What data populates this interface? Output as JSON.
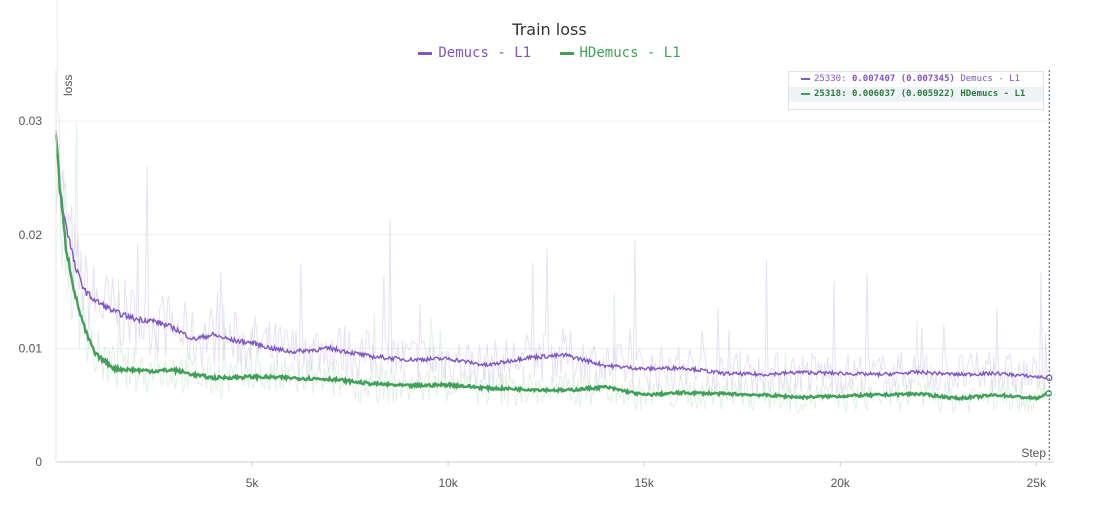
{
  "chart_data": {
    "type": "line",
    "title": "Train loss",
    "xlabel": "Step",
    "ylabel": "loss",
    "xlim": [
      0,
      25400
    ],
    "ylim": [
      0,
      0.0345
    ],
    "x_ticks": [
      5000,
      10000,
      15000,
      20000,
      25000
    ],
    "x_tick_labels": [
      "5k",
      "10k",
      "15k",
      "20k",
      "25k"
    ],
    "y_ticks": [
      0,
      0.01,
      0.02,
      0.03
    ],
    "y_tick_labels": [
      "0",
      "0.01",
      "0.02",
      "0.03"
    ],
    "grid": true,
    "legend_position": "top-center",
    "series": [
      {
        "name": "Demucs - L1",
        "color": "#7e57c2",
        "x": [
          0,
          100,
          250,
          500,
          750,
          1000,
          1500,
          2000,
          2500,
          3000,
          3500,
          4000,
          4500,
          5000,
          5500,
          6000,
          7000,
          8000,
          9000,
          10000,
          11000,
          12000,
          13000,
          14000,
          15000,
          16000,
          17000,
          18000,
          19000,
          20000,
          21000,
          22000,
          23000,
          24000,
          25000,
          25330
        ],
        "values": [
          0.029,
          0.024,
          0.021,
          0.017,
          0.015,
          0.0142,
          0.0132,
          0.0126,
          0.0124,
          0.0118,
          0.0108,
          0.0112,
          0.0107,
          0.0105,
          0.01,
          0.0097,
          0.01,
          0.0093,
          0.009,
          0.0091,
          0.0085,
          0.0092,
          0.0094,
          0.0085,
          0.0082,
          0.0083,
          0.0078,
          0.0077,
          0.0079,
          0.0078,
          0.0077,
          0.0079,
          0.0077,
          0.0078,
          0.0075,
          0.007407
        ]
      },
      {
        "name": "HDemucs - L1",
        "color": "#43a05a",
        "x": [
          0,
          100,
          250,
          500,
          750,
          1000,
          1500,
          2000,
          2500,
          3000,
          3500,
          4000,
          5000,
          6000,
          7000,
          8000,
          9000,
          10000,
          11000,
          12000,
          13000,
          14000,
          15000,
          16000,
          17000,
          18000,
          19000,
          20000,
          21000,
          22000,
          23000,
          24000,
          25000,
          25318
        ],
        "values": [
          0.029,
          0.024,
          0.019,
          0.0145,
          0.0115,
          0.0095,
          0.0082,
          0.0081,
          0.008,
          0.0081,
          0.0077,
          0.0074,
          0.0075,
          0.0074,
          0.0073,
          0.0069,
          0.0067,
          0.0068,
          0.0065,
          0.0064,
          0.0063,
          0.0066,
          0.0059,
          0.0061,
          0.006,
          0.0059,
          0.0057,
          0.0058,
          0.0059,
          0.006,
          0.0056,
          0.0059,
          0.0056,
          0.006037
        ]
      }
    ],
    "tooltip": {
      "rows": [
        {
          "step": "25330:",
          "value": "0.007407",
          "smoothed": "(0.007345)",
          "name": "Demucs - L1",
          "color": "#7e57c2"
        },
        {
          "step": "25318:",
          "value": "0.006037",
          "smoothed": "(0.005922)",
          "name": "HDemucs - L1",
          "color": "#43a05a"
        }
      ]
    }
  }
}
